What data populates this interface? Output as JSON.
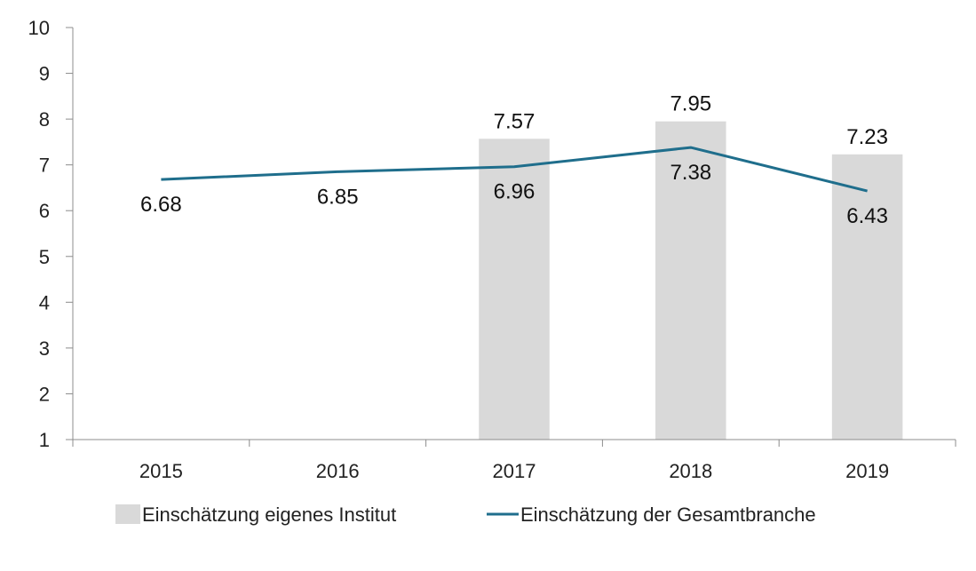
{
  "chart_data": {
    "type": "bar",
    "categories": [
      "2015",
      "2016",
      "2017",
      "2018",
      "2019"
    ],
    "ylim": [
      1,
      10
    ],
    "yticks": [
      1,
      2,
      3,
      4,
      5,
      6,
      7,
      8,
      9,
      10
    ],
    "grid": false,
    "legend_position": "bottom",
    "series": [
      {
        "name": "Einschätzung eigenes Institut",
        "type": "bar",
        "color": "#d9d9d9",
        "values": [
          null,
          null,
          7.57,
          7.95,
          7.23
        ],
        "labels": [
          "",
          "",
          "7.57",
          "7.95",
          "7.23"
        ]
      },
      {
        "name": "Einschätzung der Gesamtbranche",
        "type": "line",
        "color": "#1f6e8c",
        "values": [
          6.68,
          6.85,
          6.96,
          7.38,
          6.43
        ],
        "labels": [
          "6.68",
          "6.85",
          "6.96",
          "7.38",
          "6.43"
        ]
      }
    ]
  }
}
